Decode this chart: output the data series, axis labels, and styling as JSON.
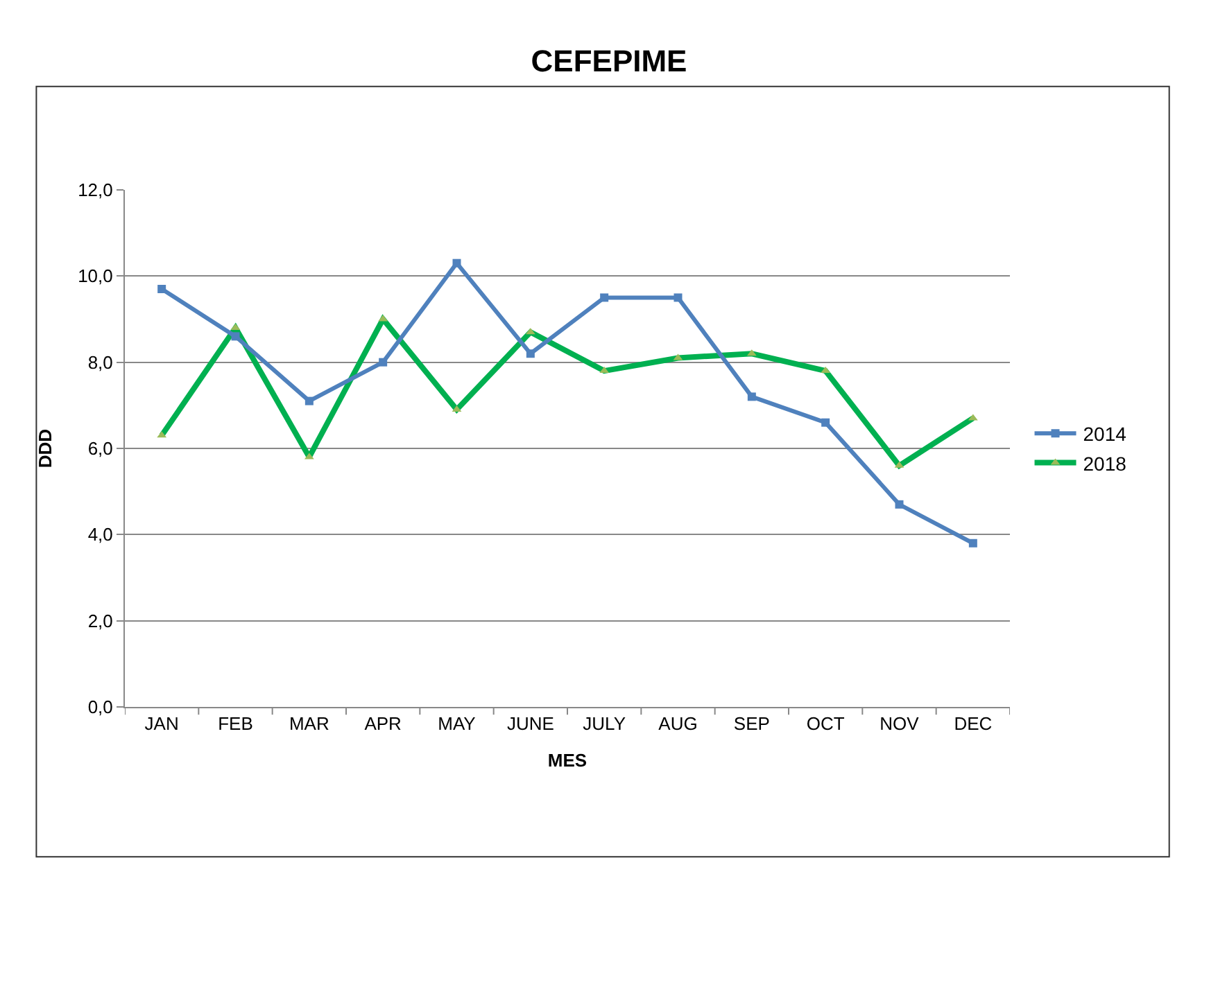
{
  "chart_data": {
    "type": "line",
    "title": "CEFEPIME",
    "xlabel": "MES",
    "ylabel": "DDD",
    "categories": [
      "JAN",
      "FEB",
      "MAR",
      "APR",
      "MAY",
      "JUNE",
      "JULY",
      "AUG",
      "SEP",
      "OCT",
      "NOV",
      "DEC"
    ],
    "series": [
      {
        "name": "2014",
        "color": "#4f81bd",
        "marker": "square",
        "values": [
          9.7,
          8.6,
          7.1,
          8.0,
          10.3,
          8.2,
          9.5,
          9.5,
          7.2,
          6.6,
          4.7,
          3.8
        ]
      },
      {
        "name": "2018",
        "color": "#00b050",
        "marker": "triangle",
        "values": [
          6.3,
          8.8,
          5.8,
          9.0,
          6.9,
          8.7,
          7.8,
          8.1,
          8.2,
          7.8,
          5.6,
          6.7
        ]
      }
    ],
    "ylim": [
      0,
      12
    ],
    "yticks": [
      {
        "value": 0,
        "label": "0,0"
      },
      {
        "value": 2,
        "label": "2,0"
      },
      {
        "value": 4,
        "label": "4,0"
      },
      {
        "value": 6,
        "label": "6,0"
      },
      {
        "value": 8,
        "label": "8,0"
      },
      {
        "value": 10,
        "label": "10,0"
      },
      {
        "value": 12,
        "label": "12,0"
      }
    ],
    "grid": "y",
    "legend": "right",
    "line_style": "solid"
  }
}
